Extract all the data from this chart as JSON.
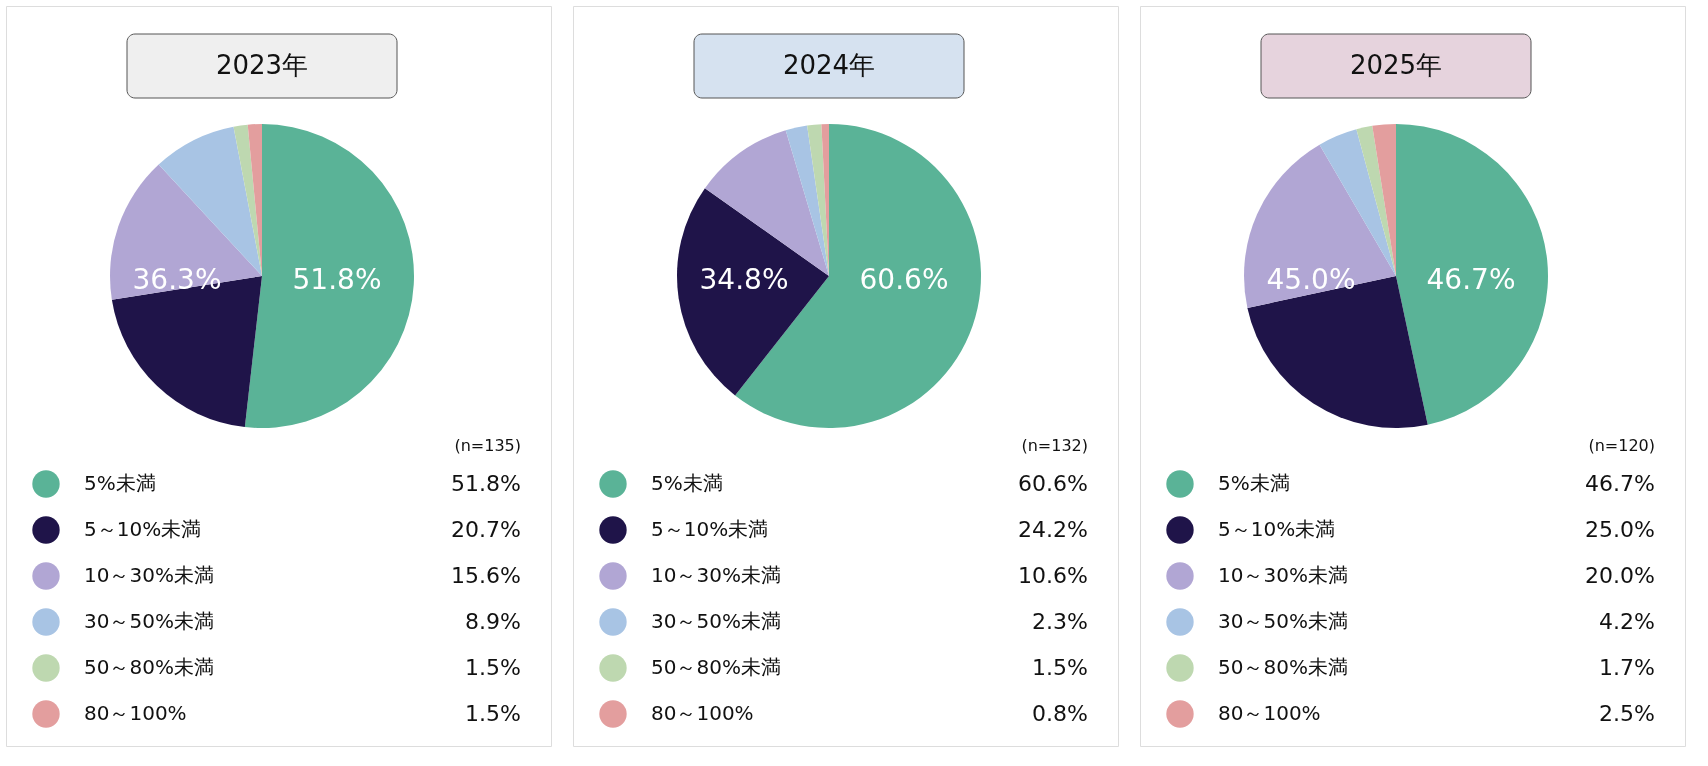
{
  "chart_data": [
    {
      "type": "pie",
      "title": "2023年",
      "categories": [
        "5%未満",
        "5～10%未満",
        "10～30%未満",
        "30～50%未満",
        "50～80%未満",
        "80～100%"
      ],
      "values": [
        51.8,
        20.7,
        15.6,
        8.9,
        1.5,
        1.5
      ],
      "value_labels": [
        "51.8%",
        "20.7%",
        "15.6%",
        "8.9%",
        "1.5%",
        "1.5%"
      ],
      "colors": [
        "#5ab397",
        "#1f1449",
        "#b1a6d4",
        "#a8c4e4",
        "#bed8b0",
        "#e39e9e"
      ],
      "legend": "bottom",
      "annotations": [
        "51.8%",
        "36.3%",
        "(n=135)"
      ]
    },
    {
      "type": "pie",
      "title": "2024年",
      "categories": [
        "5%未満",
        "5～10%未満",
        "10～30%未満",
        "30～50%未満",
        "50～80%未満",
        "80～100%"
      ],
      "values": [
        60.6,
        24.2,
        10.6,
        2.3,
        1.5,
        0.8
      ],
      "value_labels": [
        "60.6%",
        "24.2%",
        "10.6%",
        "2.3%",
        "1.5%",
        "0.8%"
      ],
      "colors": [
        "#5ab397",
        "#1f1449",
        "#b1a6d4",
        "#a8c4e4",
        "#bed8b0",
        "#e39e9e"
      ],
      "legend": "bottom",
      "annotations": [
        "60.6%",
        "34.8%",
        "(n=132)"
      ]
    },
    {
      "type": "pie",
      "title": "2025年",
      "categories": [
        "5%未満",
        "5～10%未満",
        "10～30%未満",
        "30～50%未満",
        "50～80%未満",
        "80～100%"
      ],
      "values": [
        46.7,
        25.0,
        20.0,
        4.2,
        1.7,
        2.5
      ],
      "value_labels": [
        "46.7%",
        "25.0%",
        "20.0%",
        "4.2%",
        "1.7%",
        "2.5%"
      ],
      "colors": [
        "#5ab397",
        "#1f1449",
        "#b1a6d4",
        "#a8c4e4",
        "#bed8b0",
        "#e39e9e"
      ],
      "legend": "bottom",
      "annotations": [
        "46.7%",
        "45.0%",
        "(n=120)"
      ]
    }
  ]
}
